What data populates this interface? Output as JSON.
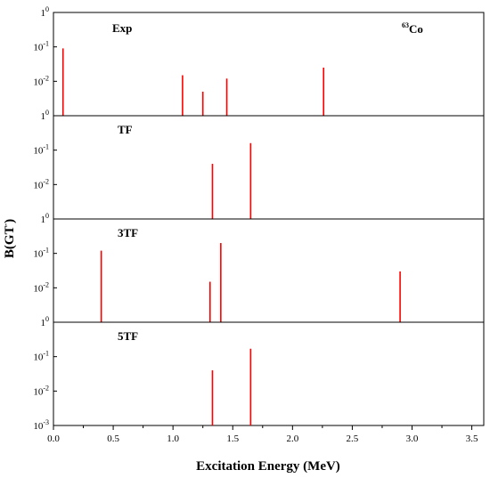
{
  "chart_data": {
    "type": "bar",
    "xlabel": "Excitation Energy (MeV)",
    "ylabel_main": "B(GT",
    "ylabel_sup": "-",
    "ylabel_end": ")",
    "xlim": [
      0,
      3.6
    ],
    "x_ticks": [
      0.0,
      0.5,
      1.0,
      1.5,
      2.0,
      2.5,
      3.0,
      3.5
    ],
    "x_tick_labels": [
      "0.0",
      "0.5",
      "1.0",
      "1.5",
      "2.0",
      "2.5",
      "3.0",
      "3.5"
    ],
    "y_scale": "log",
    "nucleus_label": {
      "mass": "63",
      "symbol": "Co"
    },
    "bar_color": "#ff0000",
    "panels": [
      {
        "label": "Exp",
        "ylim_exp": [
          -3,
          0
        ],
        "y_tick_labels": [
          {
            "base": "1",
            "exp": "0"
          },
          {
            "base": "10",
            "exp": "-1"
          },
          {
            "base": "10",
            "exp": "-2"
          },
          {
            "base": "1",
            "exp": "0"
          }
        ],
        "x": [
          0.08,
          1.08,
          1.25,
          1.45,
          2.26
        ],
        "values": [
          0.09,
          0.015,
          0.005,
          0.012,
          0.025
        ]
      },
      {
        "label": "TF",
        "ylim_exp": [
          -3,
          0
        ],
        "y_tick_labels": [
          {
            "base": "10",
            "exp": "-1"
          },
          {
            "base": "10",
            "exp": "-2"
          },
          {
            "base": "1",
            "exp": "0"
          }
        ],
        "x": [
          1.33,
          1.65
        ],
        "values": [
          0.04,
          0.16
        ]
      },
      {
        "label": "3TF",
        "ylim_exp": [
          -3,
          0
        ],
        "y_tick_labels": [
          {
            "base": "10",
            "exp": "-1"
          },
          {
            "base": "10",
            "exp": "-2"
          },
          {
            "base": "1",
            "exp": "0"
          }
        ],
        "x": [
          0.4,
          1.31,
          1.4,
          2.9
        ],
        "values": [
          0.12,
          0.015,
          0.2,
          0.03
        ]
      },
      {
        "label": "5TF",
        "ylim_exp": [
          -3,
          0
        ],
        "y_tick_labels": [
          {
            "base": "10",
            "exp": "-1"
          },
          {
            "base": "10",
            "exp": "-2"
          },
          {
            "base": "10",
            "exp": "-3"
          }
        ],
        "x": [
          1.33,
          1.65
        ],
        "values": [
          0.04,
          0.17
        ]
      }
    ]
  }
}
